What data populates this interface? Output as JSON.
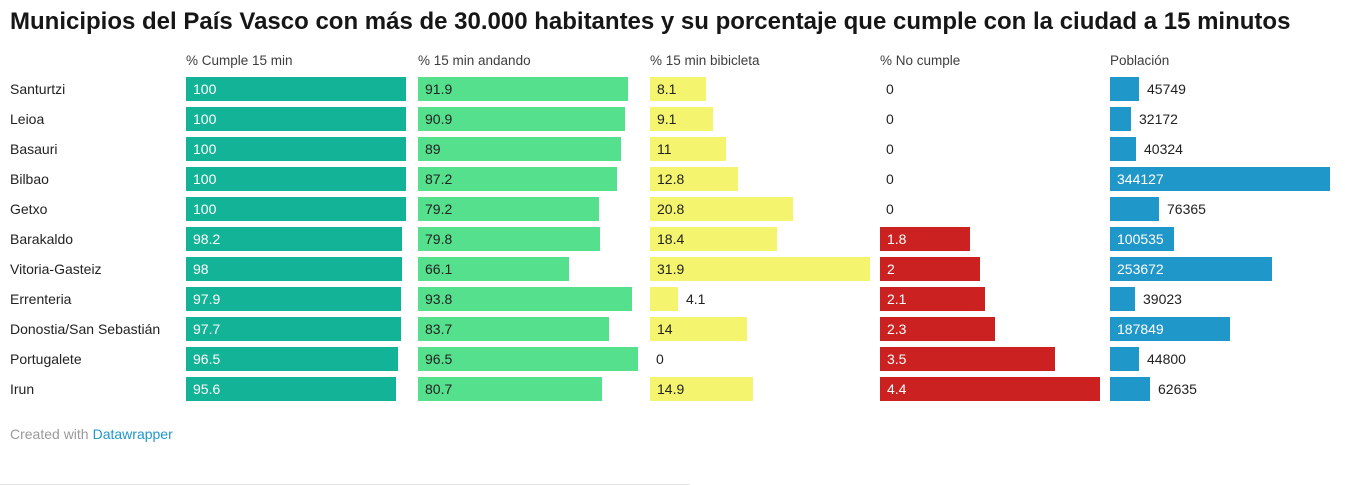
{
  "title": "Municipios del País Vasco con más de 30.000 habitantes y su porcentaje que cumple con la ciudad a 15 minutos",
  "footer": {
    "prefix": "Created with",
    "link": "Datawrapper"
  },
  "colors": {
    "teal": "#12b396",
    "light_green": "#55e08e",
    "yellow": "#f4f46e",
    "red": "#cb2121",
    "blue": "#2097c9",
    "link_blue": "#2197cc"
  },
  "chart_data": {
    "type": "bar",
    "title": "Municipios del País Vasco con más de 30.000 habitantes y su porcentaje que cumple con la ciudad a 15 minutos",
    "legend_position": "none",
    "grid": false,
    "columns": [
      {
        "key": "cumple",
        "label": "% Cumple 15 min",
        "color": "#12b396",
        "label_color_inside": "#ffffff",
        "max": 100
      },
      {
        "key": "andando",
        "label": "% 15 min andando",
        "color": "#55e08e",
        "label_color_inside": "#222222",
        "max": 96.5
      },
      {
        "key": "bicicleta",
        "label": "% 15 min bibicleta",
        "color": "#f4f46e",
        "label_color_inside": "#222222",
        "max": 31.9
      },
      {
        "key": "no-cumple",
        "label": "% No cumple",
        "color": "#cb2121",
        "label_color_inside": "#ffffff",
        "max": 4.4
      },
      {
        "key": "poblacion",
        "label": "Población",
        "color": "#2097c9",
        "label_color_inside": "#ffffff",
        "max": 344127
      }
    ],
    "rows": [
      {
        "name": "Santurtzi",
        "values": [
          100,
          91.9,
          8.1,
          0,
          45749
        ],
        "display": [
          "100",
          "91.9",
          "8.1",
          "0",
          "45749"
        ]
      },
      {
        "name": "Leioa",
        "values": [
          100,
          90.9,
          9.1,
          0,
          32172
        ],
        "display": [
          "100",
          "90.9",
          "9.1",
          "0",
          "32172"
        ]
      },
      {
        "name": "Basauri",
        "values": [
          100,
          89,
          11,
          0,
          40324
        ],
        "display": [
          "100",
          "89",
          "11",
          "0",
          "40324"
        ]
      },
      {
        "name": "Bilbao",
        "values": [
          100,
          87.2,
          12.8,
          0,
          344127
        ],
        "display": [
          "100",
          "87.2",
          "12.8",
          "0",
          "344127"
        ]
      },
      {
        "name": "Getxo",
        "values": [
          100,
          79.2,
          20.8,
          0,
          76365
        ],
        "display": [
          "100",
          "79.2",
          "20.8",
          "0",
          "76365"
        ]
      },
      {
        "name": "Barakaldo",
        "values": [
          98.2,
          79.8,
          18.4,
          1.8,
          100535
        ],
        "display": [
          "98.2",
          "79.8",
          "18.4",
          "1.8",
          "100535"
        ]
      },
      {
        "name": "Vitoria-Gasteiz",
        "values": [
          98,
          66.1,
          31.9,
          2,
          253672
        ],
        "display": [
          "98",
          "66.1",
          "31.9",
          "2",
          "253672"
        ]
      },
      {
        "name": "Errenteria",
        "values": [
          97.9,
          93.8,
          4.1,
          2.1,
          39023
        ],
        "display": [
          "97.9",
          "93.8",
          "4.1",
          "2.1",
          "39023"
        ]
      },
      {
        "name": "Donostia/San Sebastián",
        "values": [
          97.7,
          83.7,
          14,
          2.3,
          187849
        ],
        "display": [
          "97.7",
          "83.7",
          "14",
          "2.3",
          "187849"
        ]
      },
      {
        "name": "Portugalete",
        "values": [
          96.5,
          96.5,
          0,
          3.5,
          44800
        ],
        "display": [
          "96.5",
          "96.5",
          "0",
          "3.5",
          "44800"
        ]
      },
      {
        "name": "Irun",
        "values": [
          95.6,
          80.7,
          14.9,
          4.4,
          62635
        ],
        "display": [
          "95.6",
          "80.7",
          "14.9",
          "4.4",
          "62635"
        ]
      }
    ]
  }
}
